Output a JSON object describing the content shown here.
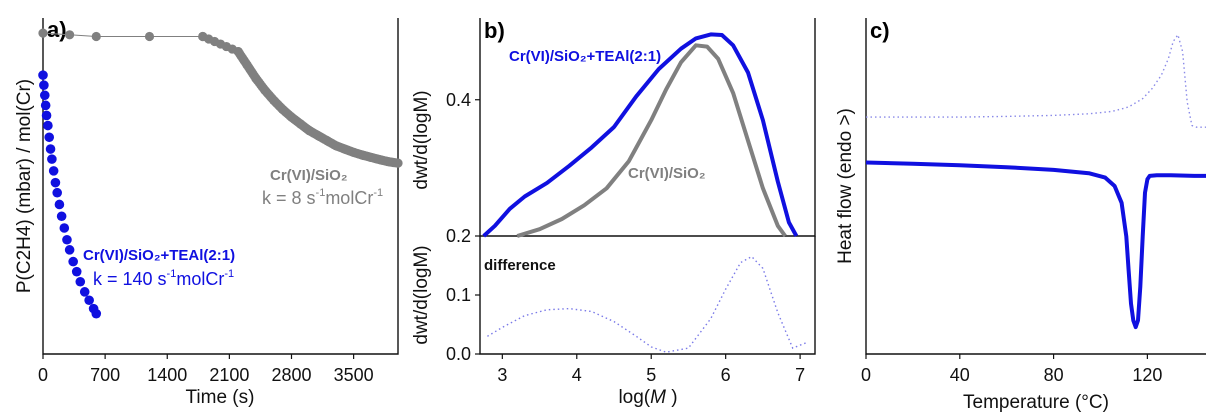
{
  "colors": {
    "blue": "#1010e0",
    "gray": "#808080",
    "axis": "#111111"
  },
  "chart_data": [
    {
      "panel": "a)",
      "type": "scatter",
      "xlabel": "Time (s)",
      "ylabel": "P(C2H4) (mbar) / mol(Cr)",
      "xlim": [
        0,
        4000
      ],
      "ylim": [
        0,
        1
      ],
      "x_ticks": [
        "0",
        "700",
        "1400",
        "2100",
        "2800",
        "3500"
      ],
      "y_ticks_shown": false,
      "series": [
        {
          "name": "Cr(VI)/SiO2",
          "color": "gray",
          "connected": true,
          "points": [
            [
              0,
              0.955
            ],
            [
              300,
              0.95
            ],
            [
              600,
              0.945
            ],
            [
              1200,
              0.945
            ],
            [
              1800,
              0.945
            ],
            [
              2200,
              0.9
            ],
            [
              2300,
              0.86
            ],
            [
              2400,
              0.82
            ],
            [
              2500,
              0.785
            ],
            [
              2600,
              0.755
            ],
            [
              2700,
              0.728
            ],
            [
              2800,
              0.705
            ],
            [
              2900,
              0.685
            ],
            [
              3000,
              0.665
            ],
            [
              3100,
              0.65
            ],
            [
              3200,
              0.635
            ],
            [
              3300,
              0.62
            ],
            [
              3400,
              0.61
            ],
            [
              3500,
              0.6
            ],
            [
              3600,
              0.592
            ],
            [
              3700,
              0.585
            ],
            [
              3800,
              0.578
            ],
            [
              3900,
              0.572
            ],
            [
              4000,
              0.568
            ]
          ],
          "label_name": "Cr(VI)/SiO₂",
          "label_k": "k = 8 s",
          "label_k_unit": "molCr"
        },
        {
          "name": "Cr(VI)/SiO2+TEAl(2:1)",
          "color": "blue",
          "connected": false,
          "points": [
            [
              0,
              0.83
            ],
            [
              10,
              0.8
            ],
            [
              20,
              0.77
            ],
            [
              30,
              0.74
            ],
            [
              40,
              0.71
            ],
            [
              55,
              0.68
            ],
            [
              70,
              0.645
            ],
            [
              85,
              0.61
            ],
            [
              100,
              0.58
            ],
            [
              120,
              0.545
            ],
            [
              140,
              0.51
            ],
            [
              160,
              0.48
            ],
            [
              185,
              0.445
            ],
            [
              210,
              0.41
            ],
            [
              240,
              0.375
            ],
            [
              270,
              0.34
            ],
            [
              300,
              0.31
            ],
            [
              340,
              0.275
            ],
            [
              380,
              0.245
            ],
            [
              420,
              0.215
            ],
            [
              470,
              0.185
            ],
            [
              520,
              0.16
            ],
            [
              570,
              0.135
            ],
            [
              600,
              0.12
            ]
          ],
          "label_name": "Cr(VI)/SiO₂+TEAl(2:1)",
          "label_k": "k = 140 s",
          "label_k_unit": "molCr"
        }
      ]
    },
    {
      "panel": "b)",
      "type": "line",
      "ylabel": "dwt/d(logM)",
      "xlim": [
        2.7,
        7.2
      ],
      "ylim": [
        0.2,
        0.52
      ],
      "y_ticks": [
        0.2,
        0.4
      ],
      "series": [
        {
          "name": "Cr(VI)/SiO2+TEAl(2:1)",
          "label": "Cr(VI)/SiO₂+TEAl(2:1)",
          "color": "blue",
          "x": [
            2.75,
            2.9,
            3.1,
            3.3,
            3.6,
            3.9,
            4.2,
            4.5,
            4.8,
            5.1,
            5.4,
            5.6,
            5.8,
            5.95,
            6.1,
            6.3,
            6.5,
            6.7,
            6.85,
            6.95
          ],
          "y": [
            0.2,
            0.215,
            0.24,
            0.258,
            0.278,
            0.303,
            0.33,
            0.36,
            0.405,
            0.445,
            0.475,
            0.49,
            0.496,
            0.495,
            0.48,
            0.44,
            0.37,
            0.28,
            0.22,
            0.2
          ]
        },
        {
          "name": "Cr(VI)/SiO2",
          "label": "Cr(VI)/SiO₂",
          "color": "gray",
          "x": [
            3.2,
            3.5,
            3.8,
            4.1,
            4.4,
            4.7,
            5.0,
            5.2,
            5.4,
            5.6,
            5.75,
            5.9,
            6.1,
            6.3,
            6.5,
            6.7,
            6.8
          ],
          "y": [
            0.2,
            0.21,
            0.225,
            0.245,
            0.27,
            0.31,
            0.37,
            0.415,
            0.455,
            0.48,
            0.478,
            0.46,
            0.41,
            0.34,
            0.27,
            0.215,
            0.2
          ]
        }
      ]
    },
    {
      "panel": "",
      "type": "line",
      "ylabel": "dwt/d(logM)",
      "xlabel_main": "log(",
      "xlabel_italic": "M",
      "xlabel_end": " )",
      "xlim": [
        2.7,
        7.2
      ],
      "ylim": [
        0,
        0.2
      ],
      "y_ticks": [
        0.0,
        0.1
      ],
      "y_tick_labels": [
        "0.0",
        "0.1"
      ],
      "x_ticks": [
        3,
        4,
        5,
        6,
        7
      ],
      "annotation": "difference",
      "series": [
        {
          "name": "difference",
          "color": "blue",
          "dotted": true,
          "x": [
            2.8,
            3.0,
            3.3,
            3.6,
            3.9,
            4.2,
            4.5,
            4.8,
            5.0,
            5.2,
            5.5,
            5.8,
            6.0,
            6.2,
            6.35,
            6.5,
            6.7,
            6.9,
            7.1
          ],
          "y": [
            0.03,
            0.045,
            0.065,
            0.075,
            0.077,
            0.072,
            0.055,
            0.03,
            0.012,
            0.003,
            0.01,
            0.06,
            0.11,
            0.155,
            0.165,
            0.145,
            0.07,
            0.01,
            0.02
          ]
        }
      ]
    },
    {
      "panel": "c)",
      "type": "line",
      "xlabel": "Temperature (°C)",
      "ylabel": "Heat flow (endo >)",
      "xlim": [
        0,
        145
      ],
      "ylim": [
        0,
        1
      ],
      "x_ticks": [
        0,
        40,
        80,
        120
      ],
      "y_ticks_shown": false,
      "series": [
        {
          "name": "dotted trace",
          "color": "blue",
          "dotted": true,
          "x": [
            0,
            20,
            40,
            60,
            80,
            95,
            105,
            112,
            118,
            122,
            126,
            129,
            131,
            133,
            135,
            137,
            139,
            141,
            143,
            145
          ],
          "y": [
            0.705,
            0.705,
            0.705,
            0.707,
            0.71,
            0.715,
            0.722,
            0.735,
            0.76,
            0.79,
            0.83,
            0.88,
            0.93,
            0.95,
            0.9,
            0.75,
            0.68,
            0.675,
            0.675,
            0.675
          ]
        },
        {
          "name": "solid trace",
          "color": "blue",
          "dotted": false,
          "x": [
            0,
            20,
            40,
            60,
            80,
            95,
            102,
            106,
            109,
            111,
            112,
            113,
            114,
            115,
            116,
            117,
            118,
            119,
            120,
            121,
            124,
            130,
            140,
            145
          ],
          "y": [
            0.57,
            0.566,
            0.562,
            0.556,
            0.548,
            0.538,
            0.525,
            0.5,
            0.45,
            0.35,
            0.25,
            0.15,
            0.1,
            0.08,
            0.1,
            0.2,
            0.35,
            0.48,
            0.52,
            0.53,
            0.532,
            0.532,
            0.53,
            0.53
          ]
        }
      ]
    }
  ]
}
